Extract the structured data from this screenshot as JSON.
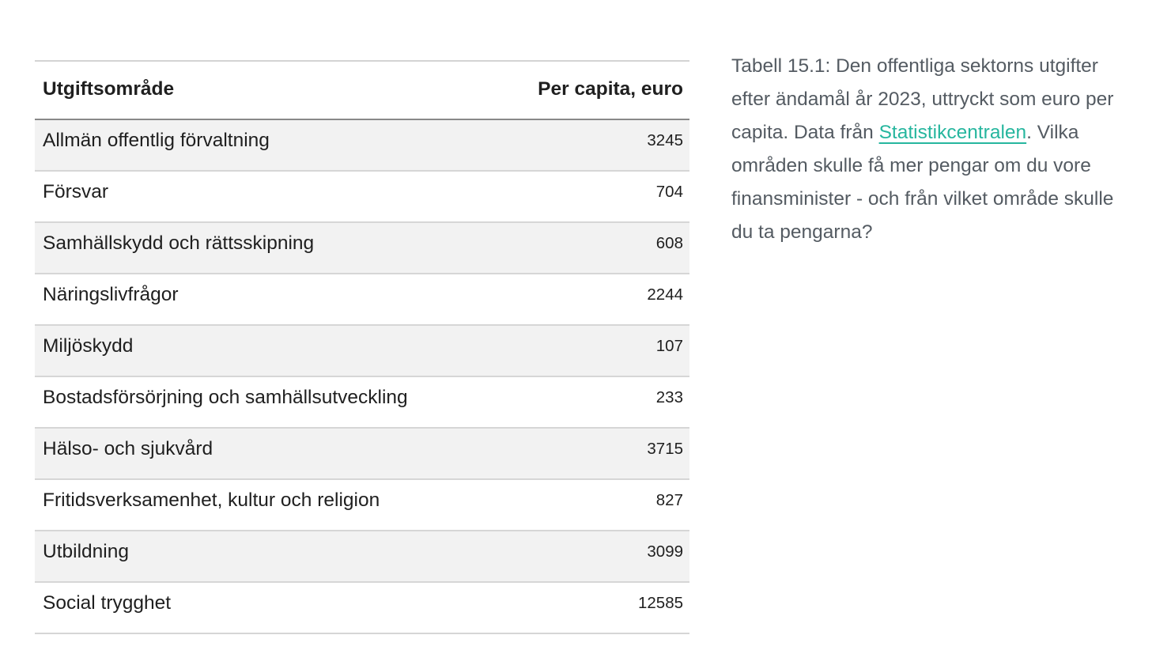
{
  "table": {
    "header": {
      "area": "Utgiftsområde",
      "value": "Per capita, euro"
    },
    "rows": [
      {
        "area": "Allmän offentlig förvaltning",
        "value": "3245"
      },
      {
        "area": "Försvar",
        "value": "704"
      },
      {
        "area": "Samhällskydd och rättsskipning",
        "value": "608"
      },
      {
        "area": "Näringslivfrågor",
        "value": "2244"
      },
      {
        "area": "Miljöskydd",
        "value": "107"
      },
      {
        "area": "Bostadsförsörjning och samhällsutveckling",
        "value": "233"
      },
      {
        "area": "Hälso- och sjukvård",
        "value": "3715"
      },
      {
        "area": "Fritidsverksamenhet, kultur och religion",
        "value": "827"
      },
      {
        "area": "Utbildning",
        "value": "3099"
      },
      {
        "area": "Social trygghet",
        "value": "12585"
      }
    ]
  },
  "caption": {
    "text_before_link": "Tabell 15.1: Den offentliga sektorns utgifter efter ändamål år 2023, uttryckt som euro per capita. Data från ",
    "link_label": "Statistikcentralen",
    "text_after_link": ". Vilka områden skulle få mer pengar om du vore finansminister - och från vilket område skulle du ta pengarna?"
  },
  "colors": {
    "link": "#26b69e",
    "caption_text": "#545b62",
    "row_stripe": "#f2f2f2",
    "separator_light": "#d6d6d6",
    "separator_dark": "#888888",
    "table_text": "#1f1f1f"
  }
}
